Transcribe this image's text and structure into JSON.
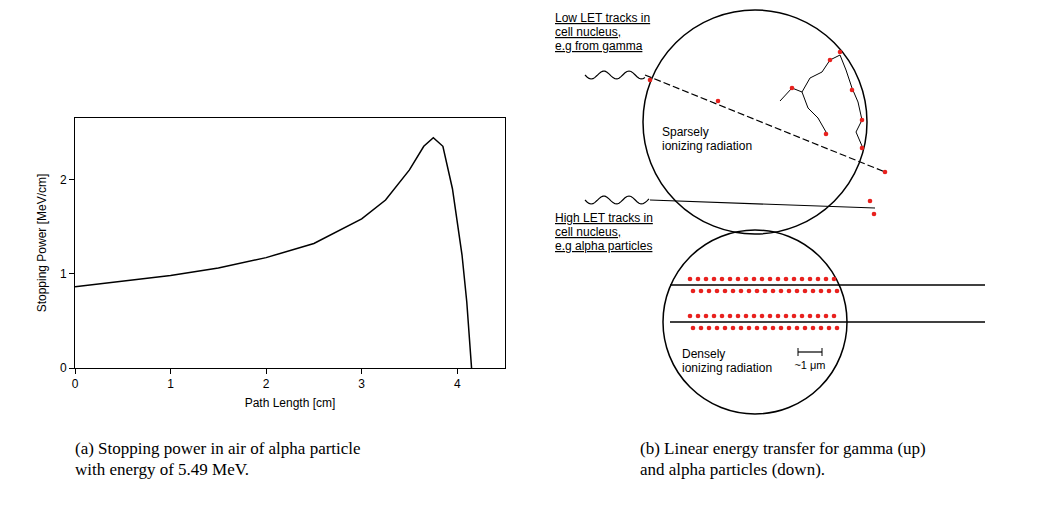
{
  "chart_data": {
    "type": "line",
    "xlabel": "Path Length [cm]",
    "ylabel": "Stopping Power [MeV/cm]",
    "x": [
      0,
      0.5,
      1,
      1.5,
      2,
      2.5,
      3,
      3.25,
      3.5,
      3.65,
      3.75,
      3.85,
      3.95,
      4.05,
      4.1,
      4.15
    ],
    "values": [
      0.86,
      0.92,
      0.98,
      1.06,
      1.17,
      1.32,
      1.58,
      1.78,
      2.1,
      2.35,
      2.44,
      2.35,
      1.9,
      1.2,
      0.7,
      0
    ],
    "color": "#000000",
    "xlim": [
      0,
      4.5
    ],
    "ylim": [
      0,
      2.65
    ],
    "xticks": [
      0,
      1,
      2,
      3,
      4
    ],
    "yticks": [
      0,
      1,
      2
    ],
    "grid": false,
    "caption": "(a) Stopping power in air of alpha particle with energy of 5.49 MeV."
  },
  "diagram": {
    "caption": "(b) Linear energy transfer for gamma (up) and alpha particles (down).",
    "low_let": {
      "heading": [
        "Low LET tracks in",
        "cell nucleus,",
        "e.g from gamma"
      ],
      "label": [
        "Sparsely",
        "ionizing radiation"
      ]
    },
    "high_let": {
      "heading": [
        "High LET tracks in",
        "cell nucleus,",
        "e.g alpha particles"
      ],
      "label": [
        "Densely",
        "ionizing radiation"
      ],
      "scale_bar": "~1 μm"
    }
  }
}
